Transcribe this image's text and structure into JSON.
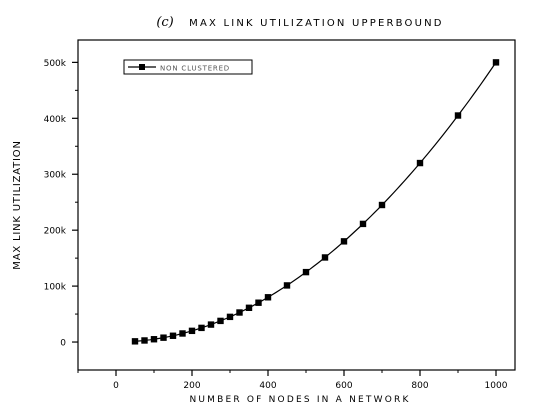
{
  "chart_data": {
    "type": "line",
    "title_prefix": "(c)",
    "title": "MAX LINK UTILIZATION UPPERBOUND",
    "xlabel": "NUMBER OF NODES IN A NETWORK",
    "ylabel": "MAX LINK UTILIZATION",
    "xlim": [
      -100,
      1050
    ],
    "ylim": [
      -50000,
      540000
    ],
    "x_ticks": [
      0,
      200,
      400,
      600,
      800,
      1000
    ],
    "x_tick_labels": [
      "0",
      "200",
      "400",
      "600",
      "800",
      "1000"
    ],
    "y_ticks": [
      0,
      100000,
      200000,
      300000,
      400000,
      500000
    ],
    "y_tick_labels": [
      "0",
      "100k",
      "200k",
      "300k",
      "400k",
      "500k"
    ],
    "legend_position": "top-left",
    "grid": false,
    "series": [
      {
        "name": "NON CLUSTERED",
        "color": "#000000",
        "marker": "square",
        "x": [
          50,
          75,
          100,
          125,
          150,
          175,
          200,
          225,
          250,
          275,
          300,
          325,
          350,
          375,
          400,
          450,
          500,
          550,
          600,
          650,
          700,
          800,
          900,
          1000
        ],
        "y": [
          1250,
          2800,
          5000,
          7800,
          11200,
          15300,
          20000,
          25300,
          31200,
          37800,
          45000,
          52800,
          61200,
          70300,
          80000,
          101200,
          125000,
          151200,
          180000,
          211200,
          245000,
          320000,
          405000,
          500000
        ]
      }
    ]
  }
}
